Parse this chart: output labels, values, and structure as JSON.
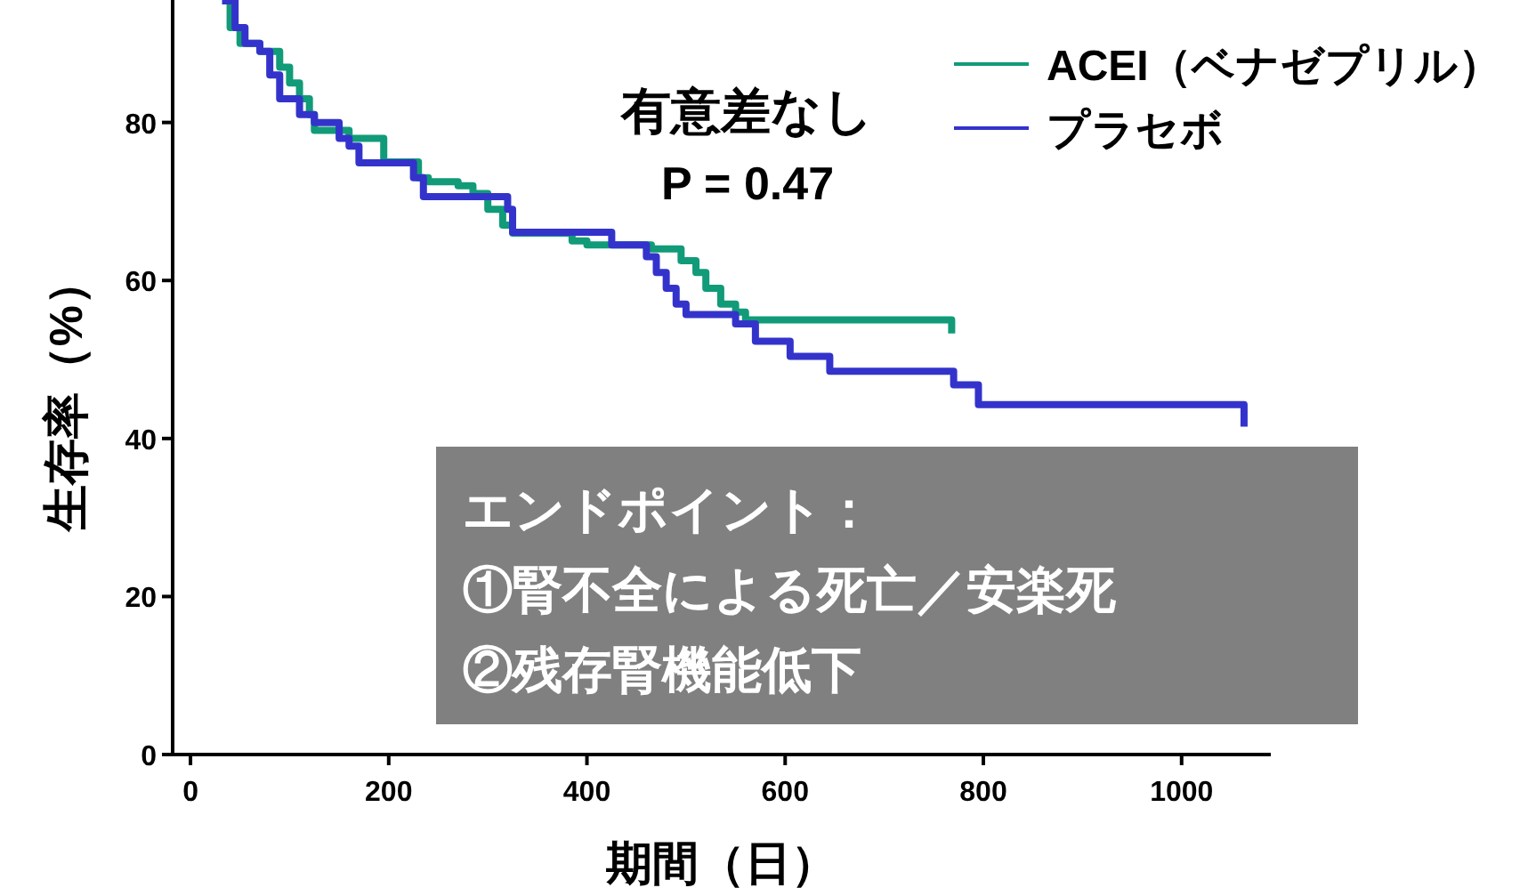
{
  "chart_data": {
    "type": "step",
    "xlabel": "期間（日）",
    "ylabel": "生存率（%）",
    "xlim": [
      -18,
      1090
    ],
    "xticks": [
      0,
      200,
      400,
      600,
      800,
      1000
    ],
    "ylim": [
      0,
      95.5
    ],
    "yticks": [
      0,
      20,
      40,
      60,
      80
    ],
    "grid": false,
    "legend": "top right",
    "series": [
      {
        "name": "ACEI（ベナゼプリル）",
        "color": "#119b78",
        "x": [
          32,
          40,
          50,
          70,
          90,
          100,
          110,
          120,
          125,
          150,
          160,
          190,
          195,
          225,
          230,
          240,
          270,
          285,
          300,
          315,
          325,
          380,
          385,
          400,
          455,
          465,
          490,
          495,
          510,
          520,
          535,
          550,
          560,
          765,
          768
        ],
        "values": [
          95.4,
          92,
          90,
          89,
          87,
          85,
          83,
          81,
          79,
          79,
          78,
          78,
          75,
          75,
          73,
          72.5,
          72,
          71,
          69,
          67,
          66,
          66,
          65,
          64.5,
          64.5,
          64,
          64,
          62.5,
          61,
          59,
          57,
          56,
          55,
          55,
          53.3
        ]
      },
      {
        "name": "プラセボ",
        "color": "#3333cc",
        "x": [
          32,
          45,
          55,
          70,
          80,
          90,
          100,
          110,
          125,
          145,
          150,
          160,
          170,
          200,
          215,
          225,
          235,
          290,
          310,
          320,
          325,
          420,
          425,
          455,
          460,
          470,
          480,
          490,
          500,
          545,
          550,
          565,
          570,
          600,
          605,
          640,
          645,
          765,
          770,
          790,
          795,
          1060,
          1063
        ],
        "values": [
          95.4,
          92,
          90,
          89,
          86,
          83,
          83,
          81,
          80,
          80,
          78,
          77,
          74.9,
          74.9,
          74.9,
          73,
          70.6,
          70.6,
          70.6,
          69,
          66.1,
          66.1,
          64.5,
          64.5,
          63,
          61,
          59,
          57,
          55.7,
          55.7,
          54.5,
          54.5,
          52.3,
          52.3,
          50.4,
          50.4,
          48.5,
          48.5,
          46.8,
          46.8,
          44.3,
          44.3,
          41.5
        ]
      }
    ],
    "annotations": [
      "有意差なし",
      "P = 0.47",
      "エンドポイント：\n①腎不全による死亡／安楽死\n②残存腎機能低下"
    ]
  }
}
